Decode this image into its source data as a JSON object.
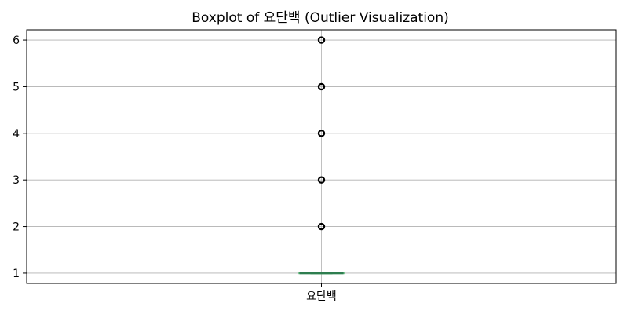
{
  "chart_data": {
    "type": "box",
    "title": "Boxplot of 요단백 (Outlier Visualization)",
    "categories": [
      "요단백"
    ],
    "xlabel": "",
    "ylabel": "",
    "ylim": [
      0.78,
      6.22
    ],
    "yticks": [
      1,
      2,
      3,
      4,
      5,
      6
    ],
    "grid": true,
    "boxes": [
      {
        "category": "요단백",
        "whisker_low": 1,
        "q1": 1,
        "median": 1,
        "q3": 1,
        "whisker_high": 1,
        "outliers": [
          2,
          3,
          4,
          5,
          6
        ]
      }
    ],
    "colors": {
      "box": "#5cb87a",
      "median": "#2e7d4f",
      "outlier_edge": "#000000",
      "grid": "#b0b0b0"
    }
  }
}
